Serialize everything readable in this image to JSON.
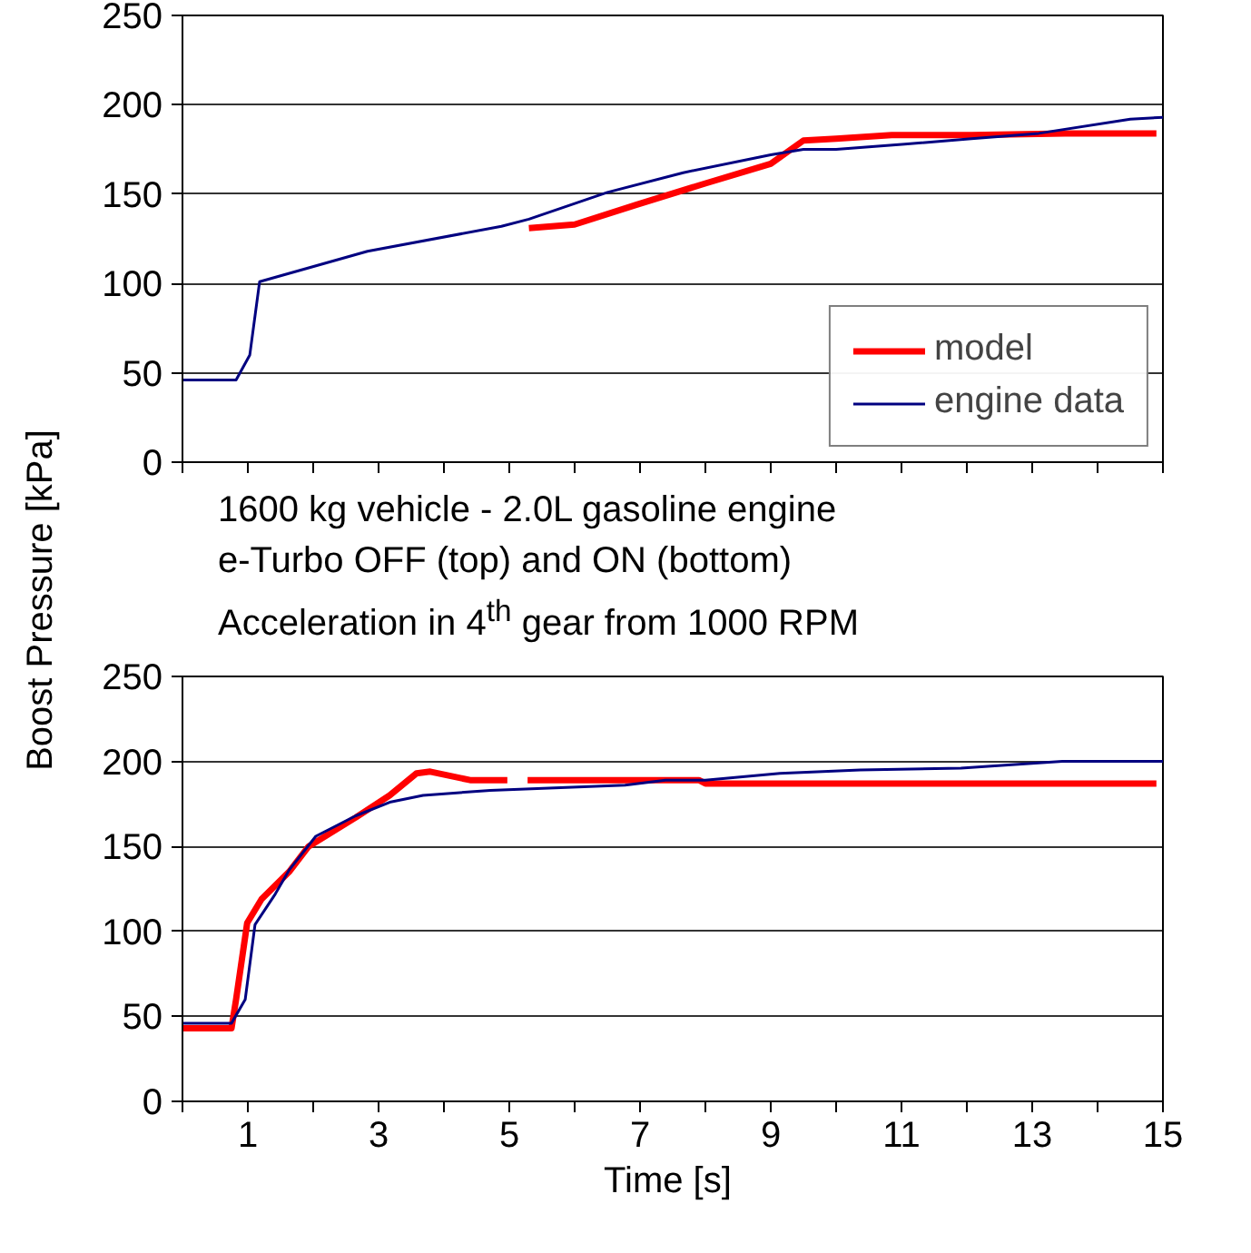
{
  "chart_data": [
    {
      "type": "line",
      "xlim": [
        0,
        15
      ],
      "xticks": [
        0,
        1,
        2,
        3,
        4,
        5,
        6,
        7,
        8,
        9,
        10,
        11,
        12,
        13,
        14,
        15
      ],
      "ylim": [
        0,
        250
      ],
      "yticks": [
        0,
        50,
        100,
        150,
        200,
        250
      ],
      "tick_labels": "y",
      "grid": "y",
      "legend": "bottom right",
      "line_style": "solid",
      "marker": "none",
      "series": [
        {
          "name": "model",
          "color": "#ff0000",
          "x": [
            5.3,
            6.0,
            6.94,
            8.0,
            9.0,
            9.5,
            10.0,
            10.85,
            12.07,
            13.5,
            14.9
          ],
          "values": [
            131,
            133,
            144,
            156,
            167,
            180,
            181,
            183,
            183,
            184,
            184
          ]
        },
        {
          "name": "engine data",
          "color": "#000080",
          "x": [
            0,
            0.82,
            1.03,
            1.18,
            2.83,
            4.88,
            5.3,
            6.5,
            7.66,
            9.0,
            9.5,
            10.0,
            11.05,
            12.07,
            13.1,
            14.5,
            15
          ],
          "values": [
            46,
            46,
            60,
            101,
            118,
            132,
            136,
            151,
            162,
            172,
            175,
            175,
            178,
            181,
            184,
            192,
            193
          ]
        }
      ]
    },
    {
      "type": "line",
      "title": "1600 kg vehicle - 2.0L gasoline engine\ne-Turbo OFF (top) and ON (bottom)\nAcceleration in 4$^{th}$ gear from 1000 RPM",
      "xlabel": "Time  [s]",
      "ylabel": "Boost Pressure [kPa]",
      "xlim": [
        0,
        15
      ],
      "xticks": [
        {
          "value": 0,
          "label": null
        },
        1,
        {
          "value": 2,
          "label": null
        },
        3,
        {
          "value": 4,
          "label": null
        },
        5,
        {
          "value": 6,
          "label": null
        },
        7,
        {
          "value": 8,
          "label": null
        },
        9,
        {
          "value": 10,
          "label": null
        },
        11,
        {
          "value": 12,
          "label": null
        },
        13,
        {
          "value": 14,
          "label": null
        },
        15
      ],
      "ylim": [
        0,
        250
      ],
      "yticks": [
        0,
        50,
        100,
        150,
        200,
        250
      ],
      "grid": "y",
      "line_style": "solid",
      "marker": "none",
      "series": [
        {
          "color": "#ff0000",
          "x": [
            0,
            0.75,
            0.82,
            0.99,
            1.21,
            1.63,
            1.93,
            2.65,
            3.17,
            3.58,
            3.79,
            4.4,
            4.97,
            5.1,
            5.28,
            7.9,
            8.0,
            14.9
          ],
          "values": [
            43,
            43,
            60,
            105,
            119,
            135,
            150,
            167,
            180,
            193,
            194,
            189,
            189,
            null,
            189,
            189,
            187,
            187
          ]
        },
        {
          "color": "#000080",
          "x": [
            0,
            0.75,
            0.96,
            1.11,
            1.42,
            1.63,
            2.04,
            2.65,
            3.17,
            3.68,
            4.71,
            6.77,
            7.39,
            8.0,
            9.14,
            10.37,
            11.91,
            13.46,
            15
          ],
          "values": [
            46,
            46,
            60,
            104,
            122,
            136,
            156,
            168,
            176,
            180,
            183,
            186,
            189,
            189,
            193,
            195,
            196,
            200,
            200
          ]
        }
      ]
    }
  ]
}
